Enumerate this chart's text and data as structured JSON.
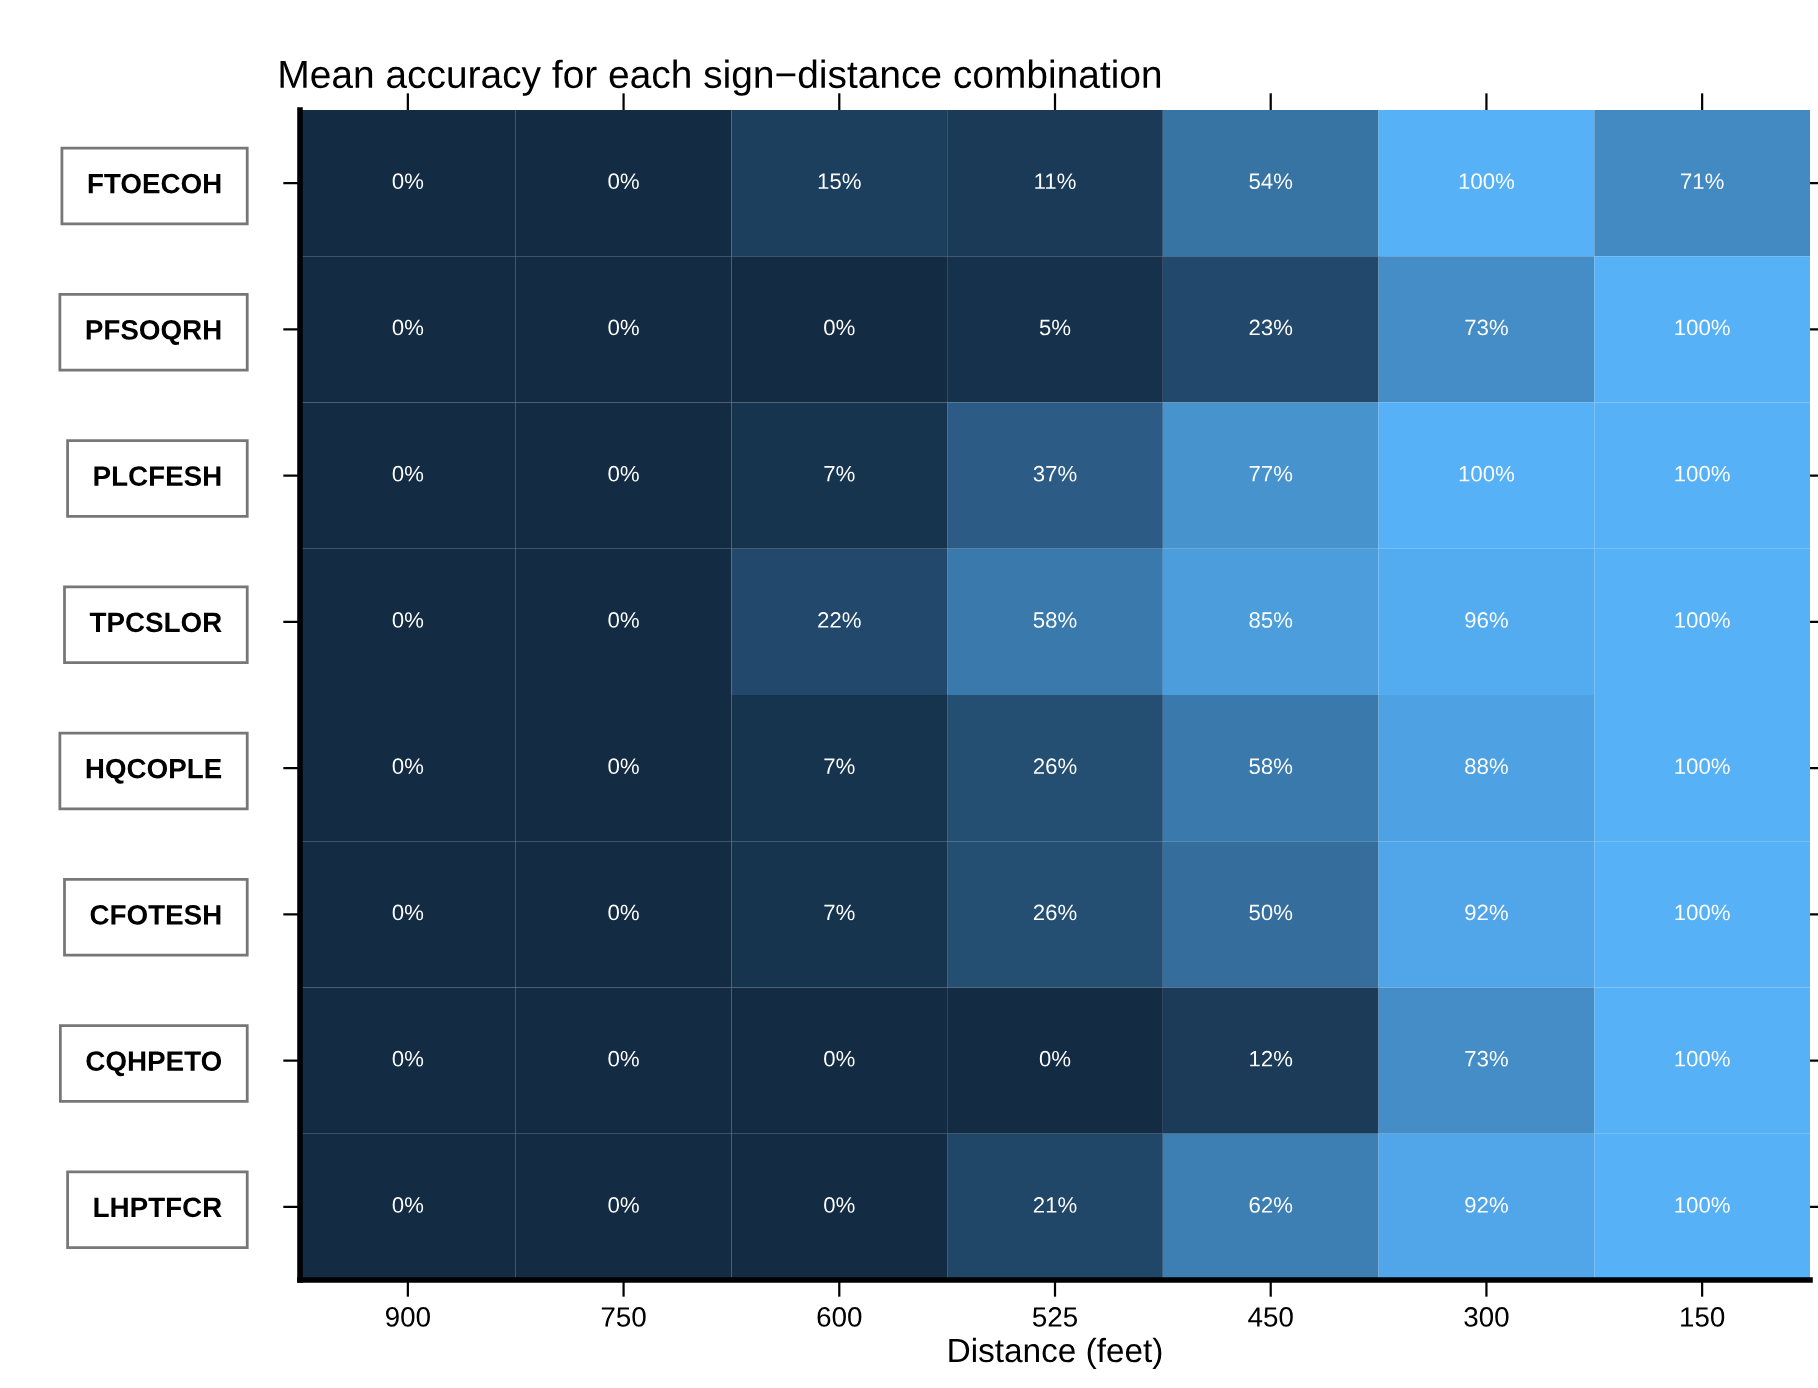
{
  "chart_data": {
    "type": "heatmap",
    "title": "Mean accuracy for each sign−distance combination",
    "xlabel": "Distance (feet)",
    "categories": [
      "900",
      "750",
      "600",
      "525",
      "450",
      "300",
      "150"
    ],
    "y_categories": [
      "FTOECOH",
      "PFSOQRH",
      "PLCFESH",
      "TPCSLOR",
      "HQCOPLE",
      "CFOTESH",
      "CQHPETO",
      "LHPTFCR"
    ],
    "colors": [
      "#132b43",
      "#56b1f7"
    ],
    "cells": [
      [
        0,
        0,
        15,
        11,
        54,
        100,
        71
      ],
      [
        0,
        0,
        0,
        5,
        23,
        73,
        100
      ],
      [
        0,
        0,
        7,
        37,
        77,
        100,
        100
      ],
      [
        0,
        0,
        22,
        58,
        85,
        96,
        100
      ],
      [
        0,
        0,
        7,
        26,
        58,
        88,
        100
      ],
      [
        0,
        0,
        7,
        26,
        50,
        92,
        100
      ],
      [
        0,
        0,
        0,
        0,
        12,
        73,
        100
      ],
      [
        0,
        0,
        0,
        21,
        62,
        92,
        100
      ]
    ],
    "cell_labels": [
      [
        "0%",
        "0%",
        "15%",
        "11%",
        "54%",
        "100%",
        "71%"
      ],
      [
        "0%",
        "0%",
        "0%",
        "5%",
        "23%",
        "73%",
        "100%"
      ],
      [
        "0%",
        "0%",
        "7%",
        "37%",
        "77%",
        "100%",
        "100%"
      ],
      [
        "0%",
        "0%",
        "22%",
        "58%",
        "85%",
        "96%",
        "100%"
      ],
      [
        "0%",
        "0%",
        "7%",
        "26%",
        "58%",
        "88%",
        "100%"
      ],
      [
        "0%",
        "0%",
        "7%",
        "26%",
        "50%",
        "92%",
        "100%"
      ],
      [
        "0%",
        "0%",
        "0%",
        "0%",
        "12%",
        "73%",
        "100%"
      ],
      [
        "0%",
        "0%",
        "0%",
        "21%",
        "62%",
        "92%",
        "100%"
      ]
    ]
  }
}
